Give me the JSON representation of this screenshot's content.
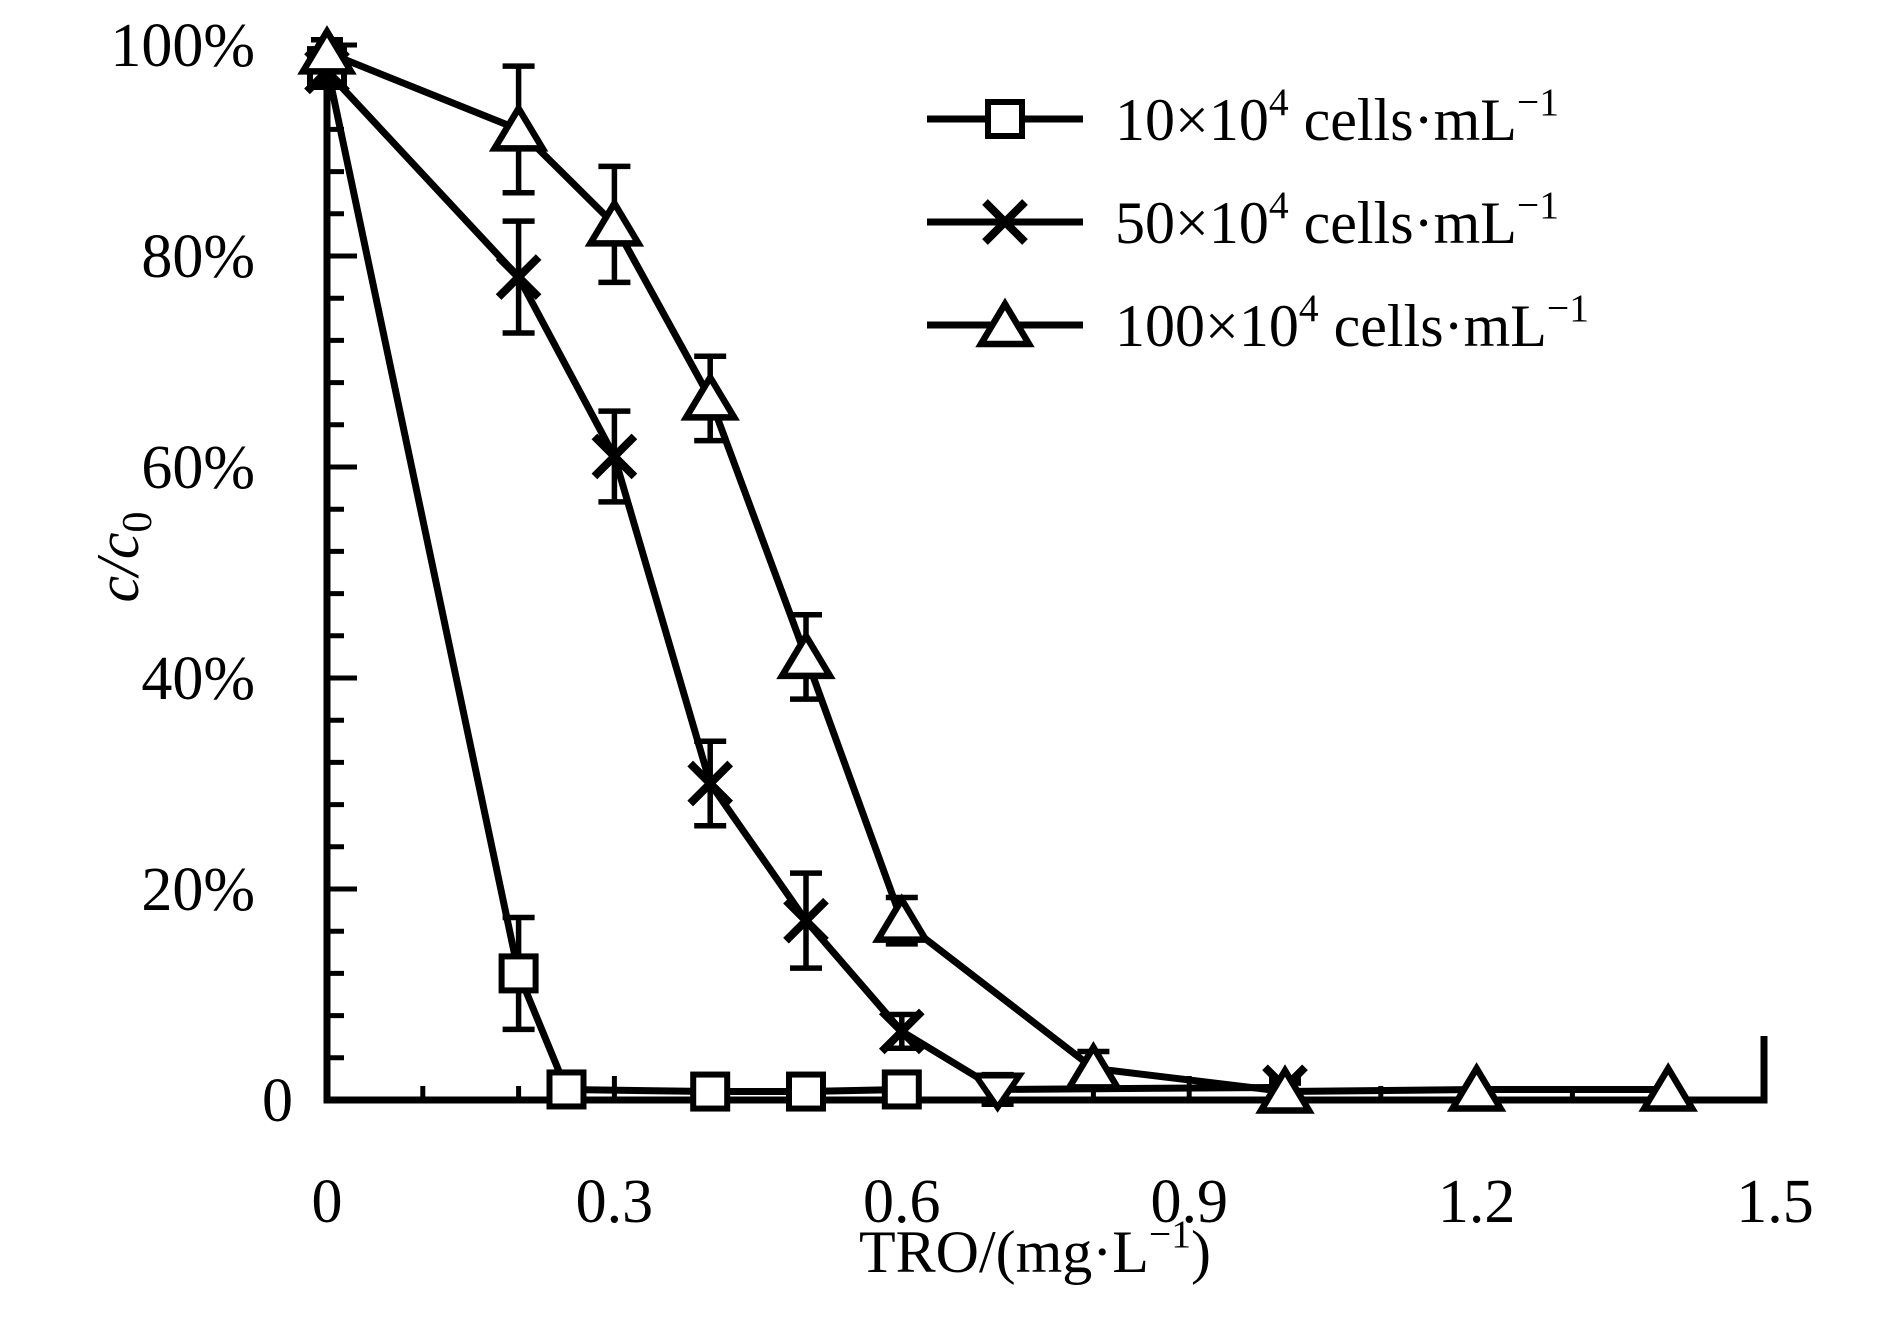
{
  "chart_data": {
    "type": "line",
    "title": "",
    "xlabel": "TRO/(mg·L⁻¹)",
    "ylabel": "c/c₀",
    "xlabel_parts": [
      {
        "t": "TRO/(mg·L"
      },
      {
        "t": "−1",
        "sup": true
      },
      {
        "t": ")"
      }
    ],
    "ylabel_parts": [
      {
        "t": "c",
        "italic": true
      },
      {
        "t": "/",
        "italic": true
      },
      {
        "t": "c",
        "italic": true
      },
      {
        "t": "0",
        "sub": true
      }
    ],
    "xlim": [
      0,
      1.5
    ],
    "ylim": [
      0,
      100
    ],
    "grid": false,
    "legend_position": "upper-right-inside",
    "x_ticks": [
      {
        "v": 0,
        "label": "0"
      },
      {
        "v": 0.3,
        "label": "0.3"
      },
      {
        "v": 0.6,
        "label": "0.6"
      },
      {
        "v": 0.9,
        "label": "0.9"
      },
      {
        "v": 1.2,
        "label": "1.2"
      },
      {
        "v": 1.5,
        "label": "1.5"
      }
    ],
    "y_ticks": [
      {
        "v": 0,
        "label": "0"
      },
      {
        "v": 20,
        "label": "20%"
      },
      {
        "v": 40,
        "label": "40%"
      },
      {
        "v": 60,
        "label": "60%"
      },
      {
        "v": 80,
        "label": "80%"
      },
      {
        "v": 100,
        "label": "100%"
      }
    ],
    "x_minor_step": 0.1,
    "y_minor_step": 4,
    "series": [
      {
        "name": "10×10⁴ cells·mL⁻¹",
        "marker": "square",
        "label_parts": [
          {
            "t": "10×10"
          },
          {
            "t": "4",
            "sup": true
          },
          {
            "t": " cells·mL"
          },
          {
            "t": "−1",
            "sup": true
          }
        ],
        "points": [
          {
            "x": 0,
            "y": 98,
            "err": 1.5
          },
          {
            "x": 0.2,
            "y": 12,
            "err": 5.3
          },
          {
            "x": 0.25,
            "y": 1,
            "err": 0
          },
          {
            "x": 0.4,
            "y": 0.8,
            "err": 0
          },
          {
            "x": 0.5,
            "y": 0.8,
            "err": 0
          },
          {
            "x": 0.6,
            "y": 1,
            "err": 0
          }
        ]
      },
      {
        "name": "50×10⁴ cells·mL⁻¹",
        "marker": "x",
        "label_parts": [
          {
            "t": "50×10"
          },
          {
            "t": "4",
            "sup": true
          },
          {
            "t": " cells·mL"
          },
          {
            "t": "−1",
            "sup": true
          }
        ],
        "points": [
          {
            "x": 0,
            "y": 97.5,
            "err": 1.5
          },
          {
            "x": 0.2,
            "y": 78,
            "err": 5.3
          },
          {
            "x": 0.3,
            "y": 61,
            "err": 4.3
          },
          {
            "x": 0.4,
            "y": 30,
            "err": 4
          },
          {
            "x": 0.5,
            "y": 17,
            "err": 4.5
          },
          {
            "x": 0.6,
            "y": 6.5,
            "err": 1.6
          },
          {
            "x": 0.7,
            "y": 1,
            "err": 1.4,
            "marker": "triangle-down"
          },
          {
            "x": 1.0,
            "y": 1.2,
            "err": 0.8
          }
        ]
      },
      {
        "name": "100×10⁴ cells·mL⁻¹",
        "marker": "triangle-up",
        "label_parts": [
          {
            "t": "100×10"
          },
          {
            "t": "4",
            "sup": true
          },
          {
            "t": " cells·mL"
          },
          {
            "t": "−1",
            "sup": true
          }
        ],
        "points": [
          {
            "x": 0,
            "y": 99.3,
            "err": 1.2
          },
          {
            "x": 0.2,
            "y": 92,
            "err": 6
          },
          {
            "x": 0.3,
            "y": 83,
            "err": 5.5
          },
          {
            "x": 0.4,
            "y": 66.5,
            "err": 4
          },
          {
            "x": 0.5,
            "y": 42,
            "err": 4
          },
          {
            "x": 0.6,
            "y": 17,
            "err": 2.2
          },
          {
            "x": 0.8,
            "y": 3,
            "err": 1.6
          },
          {
            "x": 1.0,
            "y": 0.8,
            "err": 0.8
          },
          {
            "x": 1.2,
            "y": 1,
            "err": 0
          },
          {
            "x": 1.4,
            "y": 1,
            "err": 0
          }
        ]
      }
    ]
  },
  "colors": {
    "ink": "#000000",
    "background": "#ffffff"
  }
}
